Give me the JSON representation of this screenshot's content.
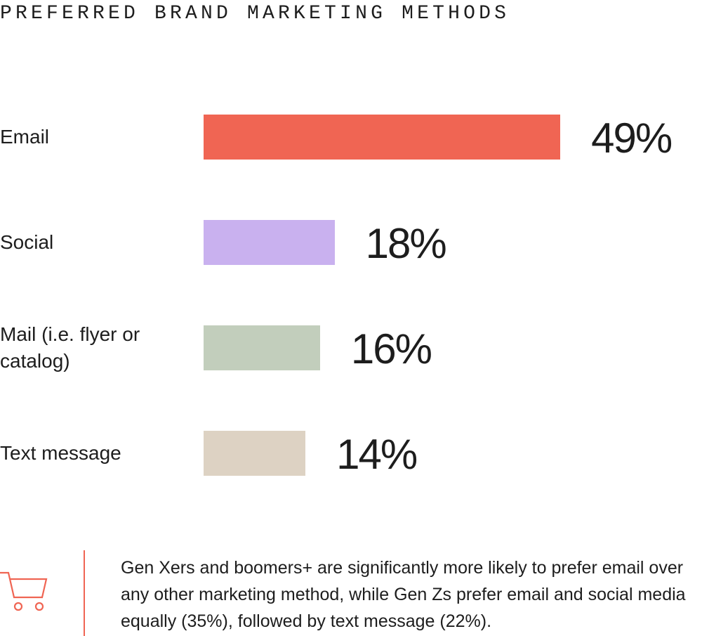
{
  "chart_data": {
    "type": "bar",
    "orientation": "horizontal",
    "title": "PREFERRED BRAND MARKETING METHODS",
    "categories": [
      "Email",
      "Social",
      "Mail (i.e. flyer or catalog)",
      "Text message"
    ],
    "values": [
      49,
      18,
      16,
      14
    ],
    "value_labels": [
      "49%",
      "18%",
      "16%",
      "14%"
    ],
    "colors": [
      "#f06553",
      "#c9b1ef",
      "#c2cebc",
      "#ddd2c3"
    ],
    "annotation": "Gen Xers and boomers+ are significantly more likely to prefer email over any other marketing method, while Gen Zs prefer email and social media equally (35%), followed by text message (22%)."
  }
}
